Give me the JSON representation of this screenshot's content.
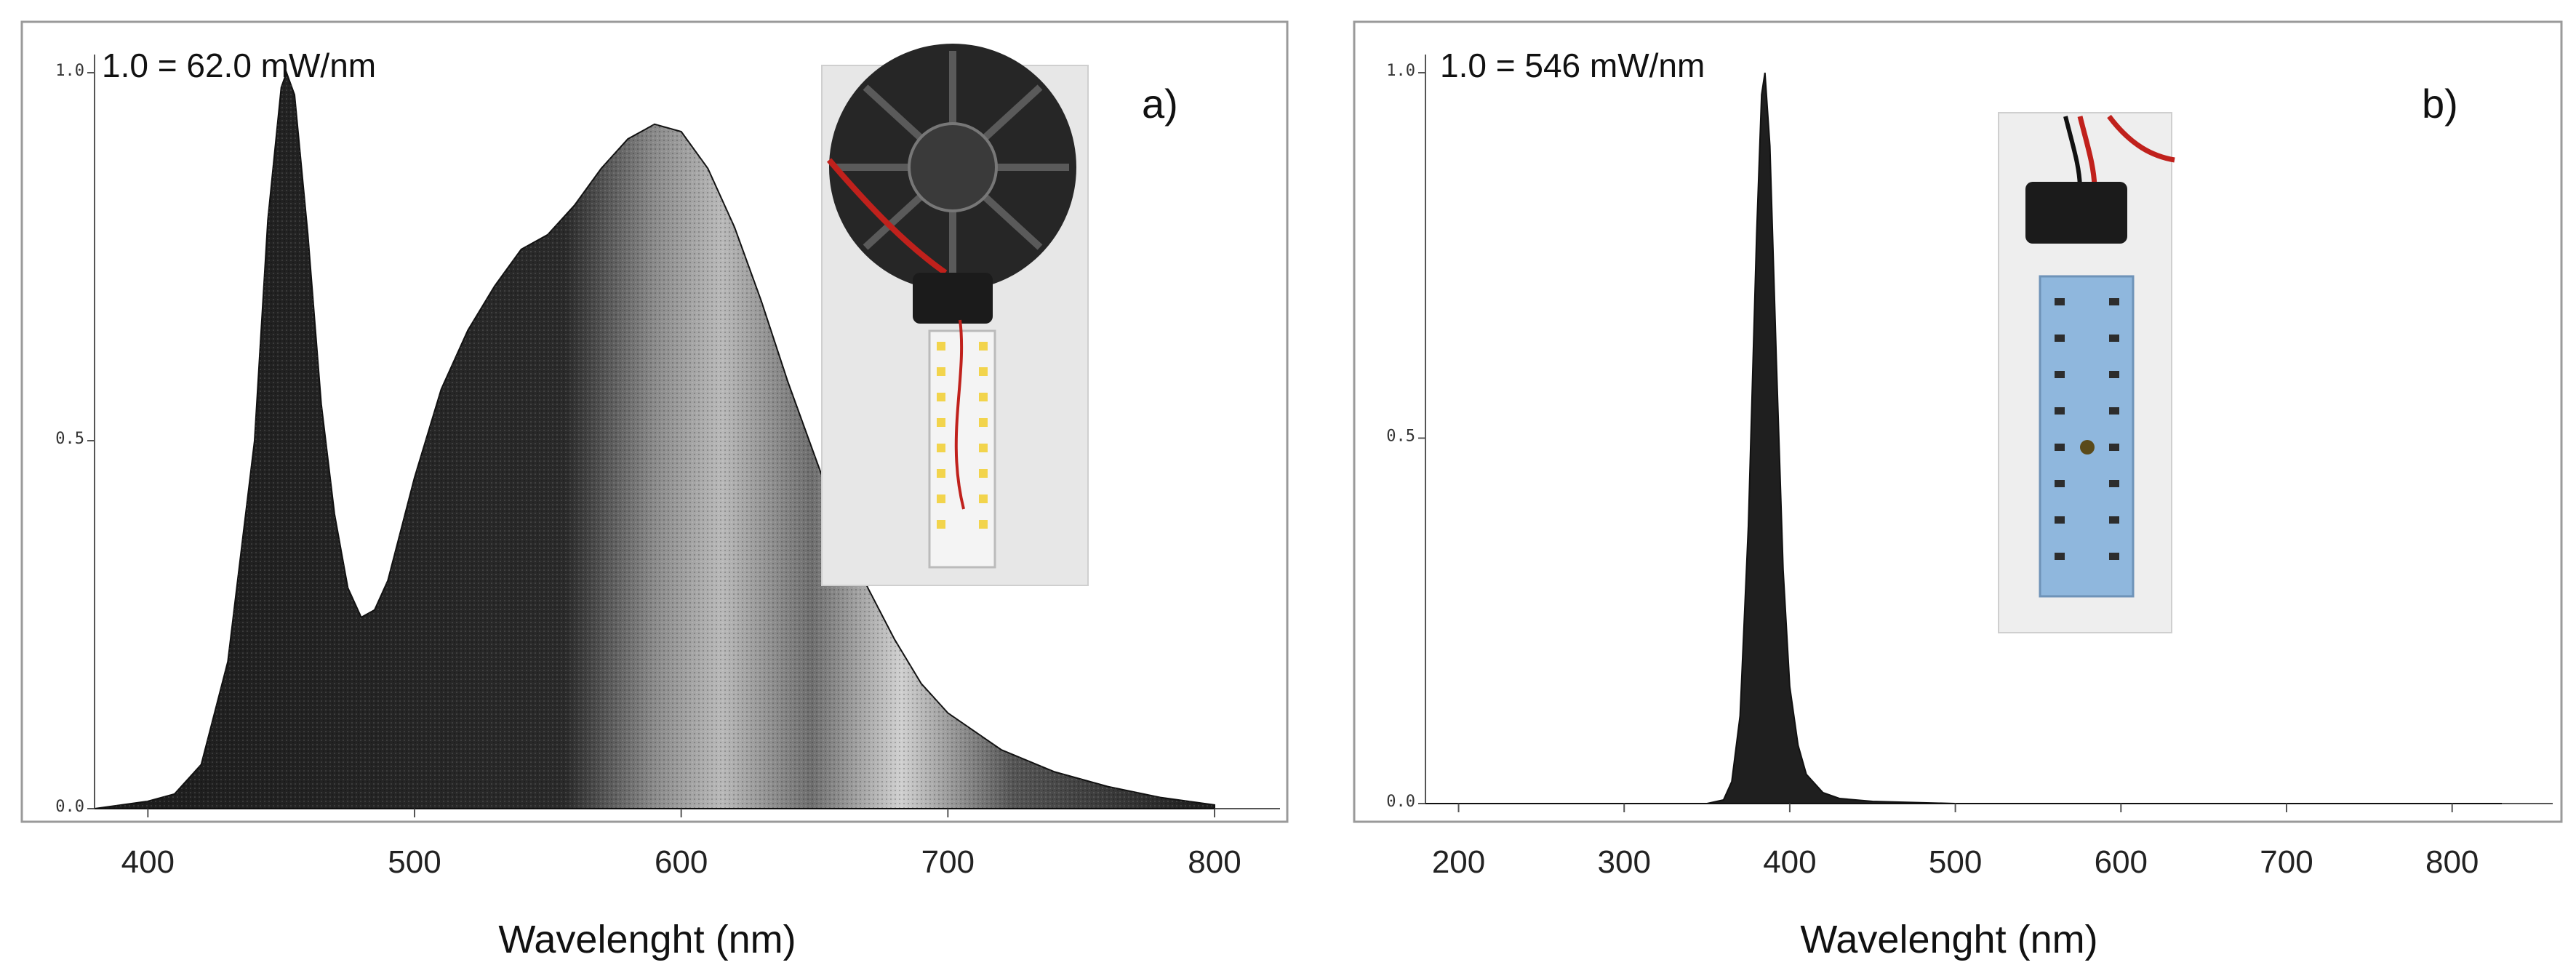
{
  "colors": {
    "spectrum_fill": "#1f1f1f",
    "spectrum_highlight": "#bdbdbd",
    "frame": "#9a9a9a",
    "axis": "#555555"
  },
  "chart_data": [
    {
      "type": "area",
      "panel_tag": "a)",
      "scale_note": "1.0 = 62.0 mW/nm",
      "xlabel": "Wavelenght (nm)",
      "ylabel": "",
      "xlim": [
        380,
        800
      ],
      "ylim": [
        0,
        1.0
      ],
      "xticks": [
        400,
        500,
        600,
        700,
        800
      ],
      "yticks": [
        0.0,
        0.5,
        1.0
      ],
      "ytick_labels": [
        "0.0",
        "0.5",
        "1.0"
      ],
      "grid": false,
      "inset_photo": "white-led-module-with-heatsink",
      "series": [
        {
          "x": [
            380,
            400,
            410,
            420,
            430,
            440,
            445,
            450,
            452,
            455,
            460,
            465,
            470,
            475,
            480,
            485,
            490,
            500,
            510,
            520,
            530,
            540,
            550,
            560,
            570,
            580,
            590,
            600,
            610,
            620,
            630,
            640,
            650,
            660,
            670,
            680,
            690,
            700,
            720,
            740,
            760,
            780,
            800
          ],
          "values": [
            0.0,
            0.01,
            0.02,
            0.06,
            0.2,
            0.5,
            0.8,
            0.98,
            1.0,
            0.97,
            0.78,
            0.55,
            0.4,
            0.3,
            0.26,
            0.27,
            0.31,
            0.45,
            0.57,
            0.65,
            0.71,
            0.76,
            0.78,
            0.82,
            0.87,
            0.91,
            0.93,
            0.92,
            0.87,
            0.79,
            0.69,
            0.58,
            0.48,
            0.38,
            0.3,
            0.23,
            0.17,
            0.13,
            0.08,
            0.05,
            0.03,
            0.015,
            0.005
          ]
        }
      ]
    },
    {
      "type": "area",
      "panel_tag": "b)",
      "scale_note": "1.0 = 546 mW/nm",
      "xlabel": "Wavelenght (nm)",
      "ylabel": "",
      "xlim": [
        180,
        830
      ],
      "ylim": [
        0,
        1.0
      ],
      "xticks": [
        200,
        300,
        400,
        500,
        600,
        700,
        800
      ],
      "yticks": [
        0.0,
        0.5,
        1.0
      ],
      "ytick_labels": [
        "0.0",
        "0.5",
        "1.0"
      ],
      "grid": false,
      "inset_photo": "uv-led-module-board",
      "series": [
        {
          "x": [
            180,
            350,
            360,
            365,
            370,
            375,
            380,
            383,
            385,
            388,
            392,
            396,
            400,
            405,
            410,
            420,
            430,
            450,
            500,
            830
          ],
          "values": [
            0.0,
            0.0,
            0.005,
            0.03,
            0.12,
            0.38,
            0.78,
            0.97,
            1.0,
            0.9,
            0.6,
            0.32,
            0.16,
            0.08,
            0.04,
            0.015,
            0.007,
            0.003,
            0.0,
            0.0
          ]
        }
      ]
    }
  ]
}
